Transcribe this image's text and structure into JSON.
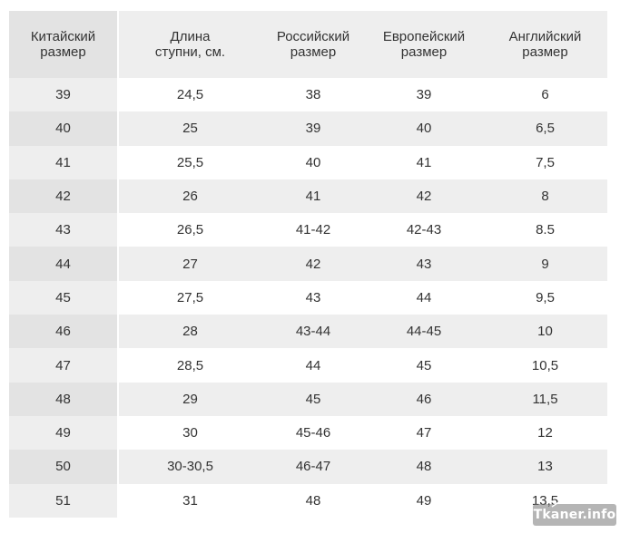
{
  "table": {
    "headers": [
      [
        "Китайский",
        "размер"
      ],
      [
        "Длина",
        "ступни, см."
      ],
      [
        "Российский",
        "размер"
      ],
      [
        "Европейский",
        "размер"
      ],
      [
        "Английский",
        "размер"
      ]
    ],
    "rows": [
      [
        "39",
        "24,5",
        "38",
        "39",
        "6"
      ],
      [
        "40",
        "25",
        "39",
        "40",
        "6,5"
      ],
      [
        "41",
        "25,5",
        "40",
        "41",
        "7,5"
      ],
      [
        "42",
        "26",
        "41",
        "42",
        "8"
      ],
      [
        "43",
        "26,5",
        "41-42",
        "42-43",
        "8.5"
      ],
      [
        "44",
        "27",
        "42",
        "43",
        "9"
      ],
      [
        "45",
        "27,5",
        "43",
        "44",
        "9,5"
      ],
      [
        "46",
        "28",
        "43-44",
        "44-45",
        "10"
      ],
      [
        "47",
        "28,5",
        "44",
        "45",
        "10,5"
      ],
      [
        "48",
        "29",
        "45",
        "46",
        "11,5"
      ],
      [
        "49",
        "30",
        "45-46",
        "47",
        "12"
      ],
      [
        "50",
        "30-30,5",
        "46-47",
        "48",
        "13"
      ],
      [
        "51",
        "31",
        "48",
        "49",
        "13,5"
      ]
    ]
  },
  "watermark": {
    "text": "Tkaner.info",
    "icon": "needle-icon"
  },
  "colors": {
    "header_bg": "#eeeeee",
    "stripe_bg": "#eeeeee",
    "first_col_bg": "#e3e3e3",
    "text": "#333333"
  }
}
